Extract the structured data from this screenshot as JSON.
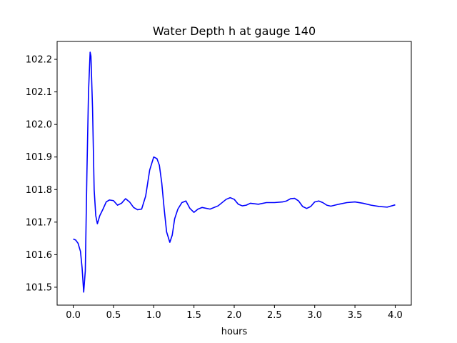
{
  "chart_data": {
    "type": "line",
    "title": "Water Depth h at gauge 140",
    "xlabel": "hours",
    "ylabel": "",
    "xlim": [
      -0.2,
      4.2
    ],
    "ylim": [
      101.445,
      102.255
    ],
    "xticks": [
      0.0,
      0.5,
      1.0,
      1.5,
      2.0,
      2.5,
      3.0,
      3.5,
      4.0
    ],
    "xtick_labels": [
      "0.0",
      "0.5",
      "1.0",
      "1.5",
      "2.0",
      "2.5",
      "3.0",
      "3.5",
      "4.0"
    ],
    "yticks": [
      101.5,
      101.6,
      101.7,
      101.8,
      101.9,
      102.0,
      102.1,
      102.2
    ],
    "ytick_labels": [
      "101.5",
      "101.6",
      "101.7",
      "101.8",
      "101.9",
      "102.0",
      "102.1",
      "102.2"
    ],
    "grid": false,
    "legend": "none",
    "series": [
      {
        "color": "#0000ff",
        "x": [
          0.0,
          0.03,
          0.06,
          0.09,
          0.11,
          0.13,
          0.15,
          0.17,
          0.19,
          0.21,
          0.22,
          0.24,
          0.26,
          0.28,
          0.3,
          0.33,
          0.37,
          0.41,
          0.45,
          0.5,
          0.55,
          0.6,
          0.65,
          0.7,
          0.75,
          0.8,
          0.85,
          0.9,
          0.95,
          1.0,
          1.04,
          1.07,
          1.1,
          1.13,
          1.16,
          1.2,
          1.23,
          1.26,
          1.3,
          1.35,
          1.4,
          1.45,
          1.5,
          1.55,
          1.6,
          1.7,
          1.8,
          1.9,
          1.95,
          2.0,
          2.05,
          2.1,
          2.15,
          2.2,
          2.3,
          2.4,
          2.5,
          2.6,
          2.65,
          2.7,
          2.75,
          2.8,
          2.85,
          2.9,
          2.95,
          3.0,
          3.05,
          3.1,
          3.15,
          3.2,
          3.3,
          3.4,
          3.5,
          3.6,
          3.7,
          3.8,
          3.9,
          4.0
        ],
        "y": [
          101.648,
          101.645,
          101.635,
          101.61,
          101.56,
          101.485,
          101.55,
          101.85,
          102.1,
          102.222,
          102.21,
          102.05,
          101.8,
          101.72,
          101.695,
          101.72,
          101.74,
          101.762,
          101.768,
          101.766,
          101.752,
          101.758,
          101.772,
          101.762,
          101.745,
          101.738,
          101.74,
          101.78,
          101.86,
          101.9,
          101.895,
          101.875,
          101.82,
          101.74,
          101.67,
          101.638,
          101.66,
          101.71,
          101.74,
          101.76,
          101.765,
          101.742,
          101.73,
          101.74,
          101.745,
          101.74,
          101.75,
          101.77,
          101.775,
          101.77,
          101.755,
          101.75,
          101.752,
          101.758,
          101.755,
          101.76,
          101.76,
          101.762,
          101.765,
          101.772,
          101.773,
          101.765,
          101.748,
          101.742,
          101.748,
          101.762,
          101.765,
          101.76,
          101.752,
          101.749,
          101.755,
          101.76,
          101.762,
          101.758,
          101.752,
          101.748,
          101.746,
          101.753
        ]
      }
    ]
  }
}
